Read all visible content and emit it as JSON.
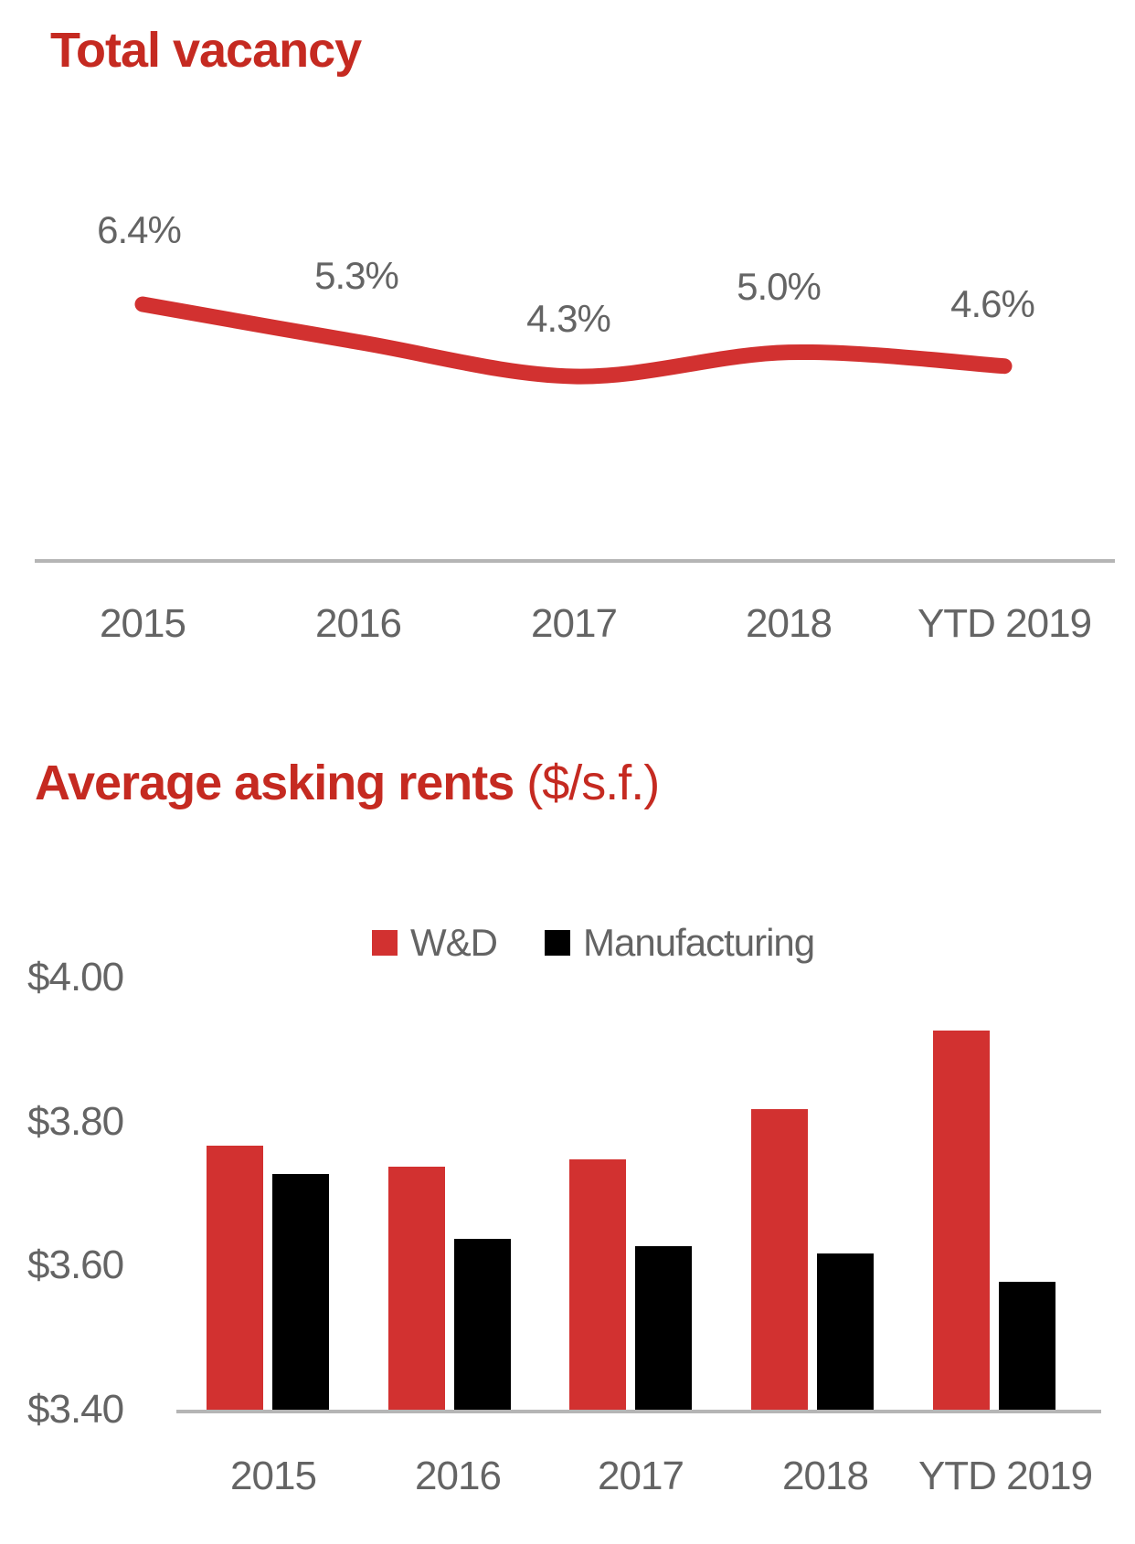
{
  "colors": {
    "title_red": "#c52a21",
    "chart_red": "#d23130",
    "bar_black": "#000000",
    "label_gray": "#646464",
    "axis_gray": "#b5b5b5"
  },
  "chart_data": [
    {
      "type": "line",
      "title": "Total vacancy",
      "categories": [
        "2015",
        "2016",
        "2017",
        "2018",
        "YTD 2019"
      ],
      "values": [
        6.4,
        5.3,
        4.3,
        5.0,
        4.6
      ],
      "point_labels": [
        "6.4%",
        "5.3%",
        "4.3%",
        "5.0%",
        "4.6%"
      ],
      "unit": "%",
      "line_color": "#d23130",
      "grid": false,
      "x_axis_line": true,
      "legend_position": "none"
    },
    {
      "type": "bar",
      "title": "Average asking rents",
      "title_suffix": "($/s.f.)",
      "categories": [
        "2015",
        "2016",
        "2017",
        "2018",
        "YTD 2019"
      ],
      "series": [
        {
          "name": "W&D",
          "color": "#d23130",
          "values": [
            3.77,
            3.74,
            3.75,
            3.82,
            3.93
          ]
        },
        {
          "name": "Manufacturing",
          "color": "#000000",
          "values": [
            3.73,
            3.64,
            3.63,
            3.62,
            3.58
          ]
        }
      ],
      "ylim": [
        3.4,
        4.0
      ],
      "ytick_step": 0.2,
      "ytick_labels": [
        "$4.00",
        "$3.80",
        "$3.60",
        "$3.40"
      ],
      "ylabel": "",
      "xlabel": "",
      "grid": false,
      "legend_position": "top"
    }
  ]
}
